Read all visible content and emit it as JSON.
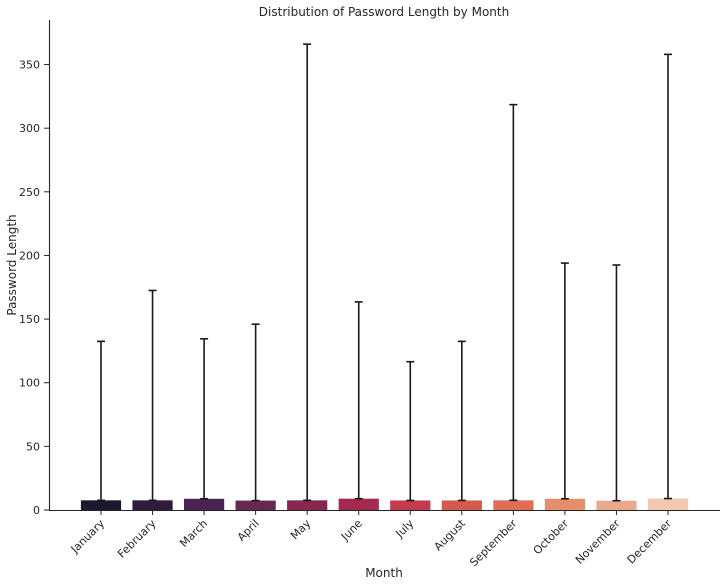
{
  "chart_data": {
    "type": "bar",
    "title": "Distribution of Password Length by Month",
    "xlabel": "Month",
    "ylabel": "Password Length",
    "categories": [
      "January",
      "February",
      "March",
      "April",
      "May",
      "June",
      "July",
      "August",
      "September",
      "October",
      "November",
      "December"
    ],
    "values": [
      7.6,
      7.6,
      8.8,
      7.4,
      7.6,
      8.9,
      7.5,
      7.5,
      7.6,
      8.8,
      7.3,
      9.0
    ],
    "error_upper": [
      132.5,
      172.5,
      134.5,
      146,
      366,
      163.5,
      116.5,
      132.5,
      318.5,
      194,
      192.5,
      358
    ],
    "yticks": [
      0,
      50,
      100,
      150,
      200,
      250,
      300,
      350
    ],
    "ylim": [
      0,
      385
    ],
    "grid": false,
    "colors": [
      "#1d1730",
      "#2f1c3c",
      "#4b2352",
      "#68284f",
      "#86284f",
      "#a5294f",
      "#c43a4f",
      "#d45a4c",
      "#dd7054",
      "#e58e6c",
      "#eaa98c",
      "#f1c9b1"
    ]
  }
}
